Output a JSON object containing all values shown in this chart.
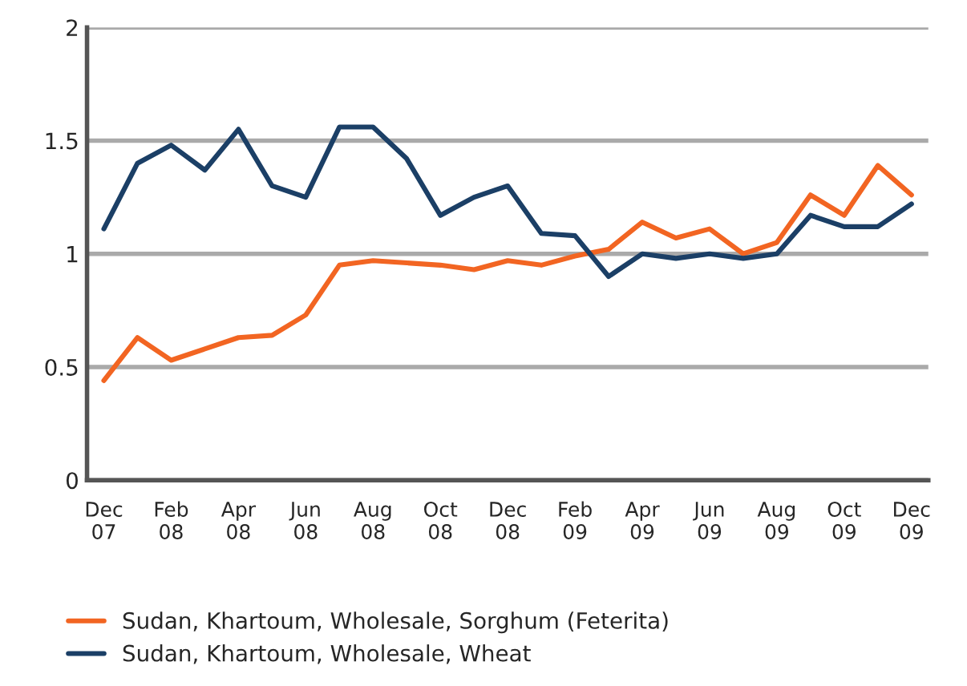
{
  "chart_data": {
    "type": "line",
    "categories": [
      "Dec\n07",
      null,
      "Feb\n08",
      null,
      "Apr\n08",
      null,
      "Jun\n08",
      null,
      "Aug\n08",
      null,
      "Oct\n08",
      null,
      "Dec\n08",
      null,
      "Feb\n09",
      null,
      "Apr\n09",
      null,
      "Jun\n09",
      null,
      "Aug\n09",
      null,
      "Oct\n09",
      null,
      "Dec\n09"
    ],
    "series": [
      {
        "name": "Sudan, Khartoum, Wholesale, Sorghum (Feterita)",
        "color": "#f26522",
        "values": [
          0.44,
          0.63,
          0.53,
          0.58,
          0.63,
          0.64,
          0.73,
          0.95,
          0.97,
          0.96,
          0.95,
          0.93,
          0.97,
          0.95,
          0.99,
          1.02,
          1.14,
          1.07,
          1.11,
          1.0,
          1.05,
          1.26,
          1.17,
          1.39,
          1.26
        ]
      },
      {
        "name": "Sudan, Khartoum, Wholesale, Wheat",
        "color": "#1b3f66",
        "values": [
          1.11,
          1.4,
          1.48,
          1.37,
          1.55,
          1.3,
          1.25,
          1.56,
          1.56,
          1.42,
          1.17,
          1.25,
          1.3,
          1.09,
          1.08,
          0.9,
          1.0,
          0.98,
          1.0,
          0.98,
          1.0,
          1.17,
          1.12,
          1.12,
          1.22
        ]
      }
    ],
    "ylim": [
      0,
      2
    ],
    "yticks": [
      0,
      0.5,
      1,
      1.5,
      2
    ],
    "grid": "y",
    "legend": "bottom",
    "marker": "none",
    "line_style": "solid"
  }
}
